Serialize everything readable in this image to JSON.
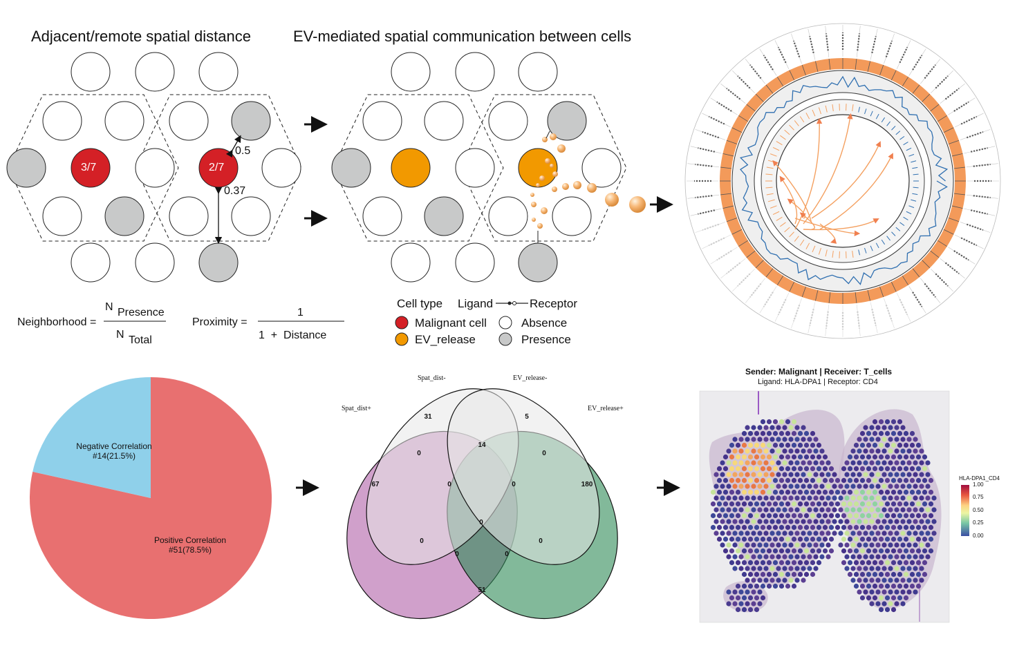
{
  "panel_a": {
    "title": "Adjacent/remote spatial distance",
    "cell_left_ratio": "3/7",
    "cell_right_ratio": "2/7",
    "dist_short": "0.5",
    "dist_long": "0.37",
    "neighborhood_label": "Neighborhood =",
    "n_presence_sym": "N",
    "n_presence_sub": "Presence",
    "n_total_sym": "N",
    "n_total_sub": "Total",
    "proximity_label": "Proximity =",
    "proximity_num": "1",
    "proximity_den": "1  +  Distance"
  },
  "panel_b": {
    "title": "EV-mediated spatial communication between cells",
    "legend": {
      "cell_type": "Cell type",
      "ligand": "Ligand",
      "receptor": "Receptor",
      "malignant": "Malignant cell",
      "ev_release": "EV_release",
      "absence": "Absence",
      "presence": "Presence"
    }
  },
  "venn": {
    "set_labels": [
      "Spat_dist+",
      "Spat_dist-",
      "EV_release-",
      "EV_release+"
    ],
    "region_values": [
      "31",
      "5",
      "14",
      "0",
      "0",
      "67",
      "0",
      "0",
      "180",
      "0",
      "0",
      "0",
      "0",
      "0",
      "51"
    ]
  },
  "spatial": {
    "title": "Sender: Malignant | Receiver: T_cells",
    "subtitle": "Ligand: HLA-DPA1 | Receptor: CD4",
    "legend_title": "HLA-DPA1_CD4",
    "legend_ticks": [
      "1.00",
      "0.75",
      "0.50",
      "0.25",
      "0.00"
    ]
  },
  "colors": {
    "malignant": "#d42026",
    "ev": "#f29900",
    "presence": "#c8c9c9",
    "pie_positive": "#e87070",
    "pie_negative": "#8fd0ea",
    "venn_purple": "#b060a8",
    "venn_green": "#2e8b57",
    "chord_orange": "#f4a060",
    "chord_blue": "#2f6fb0"
  },
  "chart_data": {
    "type": "pie",
    "title": "",
    "slices": [
      {
        "label": "Positive Correlation",
        "count_label": "#51(78.5%)",
        "value": 78.5
      },
      {
        "label": "Negative Correlation",
        "count_label": "#14(21.5%)",
        "value": 21.5
      }
    ]
  }
}
